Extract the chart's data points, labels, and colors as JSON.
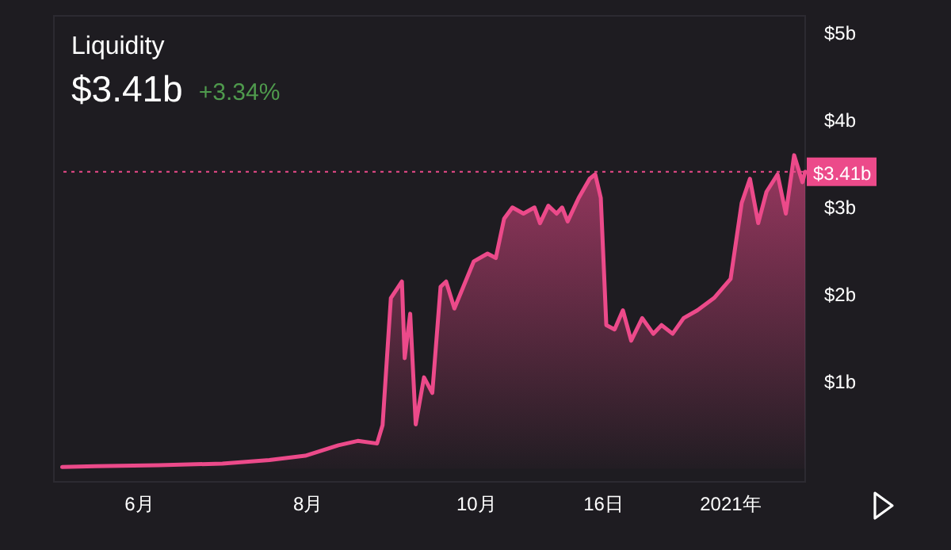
{
  "chart_data": {
    "type": "area",
    "title": "Liquidity",
    "subtitle": "$3.41b",
    "annotations": [
      "+3.34%"
    ],
    "x": [
      "2020-05-04",
      "2020-05-16",
      "2020-06-08",
      "2020-07-01",
      "2020-07-18",
      "2020-07-31",
      "2020-08-12",
      "2020-08-19",
      "2020-08-26",
      "2020-08-28",
      "2020-08-31",
      "2020-09-04",
      "2020-09-05",
      "2020-09-07",
      "2020-09-09",
      "2020-09-12",
      "2020-09-15",
      "2020-09-18",
      "2020-09-20",
      "2020-09-23",
      "2020-09-30",
      "2020-10-05",
      "2020-10-08",
      "2020-10-11",
      "2020-10-14",
      "2020-10-18",
      "2020-10-22",
      "2020-10-24",
      "2020-10-27",
      "2020-10-30",
      "2020-11-01",
      "2020-11-03",
      "2020-11-07",
      "2020-11-11",
      "2020-11-13",
      "2020-11-15",
      "2020-11-17",
      "2020-11-20",
      "2020-11-23",
      "2020-11-26",
      "2020-11-30",
      "2020-12-04",
      "2020-12-07",
      "2020-12-11",
      "2020-12-15",
      "2020-12-20",
      "2020-12-26",
      "2021-01-01",
      "2021-01-05",
      "2021-01-08",
      "2021-01-11",
      "2021-01-14",
      "2021-01-18",
      "2021-01-21",
      "2021-01-24",
      "2021-01-27",
      "2021-01-28"
    ],
    "series": [
      {
        "color": "#ec4a8a",
        "values": [
          0.02,
          0.03,
          0.04,
          0.06,
          0.1,
          0.15,
          0.27,
          0.32,
          0.29,
          0.5,
          1.96,
          2.15,
          1.27,
          1.78,
          0.51,
          1.05,
          0.87,
          2.09,
          2.15,
          1.84,
          2.38,
          2.47,
          2.42,
          2.87,
          3.0,
          2.93,
          3.0,
          2.82,
          3.02,
          2.93,
          3.0,
          2.84,
          3.11,
          3.33,
          3.38,
          3.11,
          1.65,
          1.6,
          1.82,
          1.47,
          1.73,
          1.55,
          1.65,
          1.55,
          1.73,
          1.82,
          1.96,
          2.18,
          3.05,
          3.33,
          2.82,
          3.18,
          3.38,
          2.93,
          3.6,
          3.29,
          3.41
        ]
      }
    ],
    "xlim": [
      "2020-05-01",
      "2021-01-28"
    ],
    "xticks": [
      {
        "value": "2020-06-01",
        "label": "6月"
      },
      {
        "value": "2020-08-01",
        "label": "8月"
      },
      {
        "value": "2020-10-01",
        "label": "10月"
      },
      {
        "value": "2020-11-16",
        "label": "16日"
      },
      {
        "value": "2021-01-01",
        "label": "2021年"
      }
    ],
    "ylim": [
      -0.15,
      5.2
    ],
    "yticks": [
      {
        "value": 1,
        "label": "$1b"
      },
      {
        "value": 2,
        "label": "$2b"
      },
      {
        "value": 3,
        "label": "$3b"
      },
      {
        "value": 4,
        "label": "$4b"
      },
      {
        "value": 5,
        "label": "$5b"
      }
    ],
    "ref_lines": [
      {
        "axis": "y",
        "value": 3.41,
        "label": "$3.41b",
        "color": "#ec4a8a",
        "line_style": "dotted"
      }
    ],
    "grid": false
  }
}
